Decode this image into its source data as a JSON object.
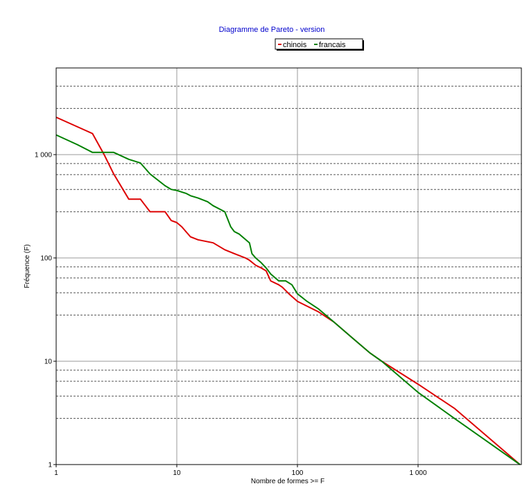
{
  "chart_data": {
    "type": "line",
    "title": "Diagramme de Pareto - version",
    "xlabel": "Nombre de formes >= F",
    "ylabel": "Fréquence (F)",
    "x_scale": "log",
    "y_scale": "log",
    "xlim": [
      1,
      7000
    ],
    "ylim": [
      1,
      5000
    ],
    "x_ticks": [
      {
        "value": 1,
        "label": "1"
      },
      {
        "value": 10,
        "label": "10"
      },
      {
        "value": 100,
        "label": "100"
      },
      {
        "value": 1000,
        "label": "1 000"
      }
    ],
    "y_ticks": [
      {
        "value": 1,
        "label": "1"
      },
      {
        "value": 10,
        "label": "10"
      },
      {
        "value": 100,
        "label": "100"
      },
      {
        "value": 1000,
        "label": "1 000"
      }
    ],
    "grid": "on",
    "legend_position": "top-center",
    "series": [
      {
        "name": "chinois",
        "color": "#dd0000",
        "points": [
          [
            1,
            2300
          ],
          [
            2,
            1600
          ],
          [
            2.5,
            1000
          ],
          [
            3,
            650
          ],
          [
            4,
            370
          ],
          [
            5,
            370
          ],
          [
            6,
            280
          ],
          [
            8,
            280
          ],
          [
            9,
            230
          ],
          [
            10,
            220
          ],
          [
            11,
            200
          ],
          [
            13,
            160
          ],
          [
            15,
            150
          ],
          [
            20,
            140
          ],
          [
            25,
            120
          ],
          [
            30,
            110
          ],
          [
            37,
            100
          ],
          [
            40,
            95
          ],
          [
            45,
            85
          ],
          [
            50,
            80
          ],
          [
            55,
            75
          ],
          [
            60,
            60
          ],
          [
            70,
            55
          ],
          [
            75,
            52
          ],
          [
            85,
            45
          ],
          [
            100,
            38
          ],
          [
            150,
            30
          ],
          [
            200,
            24
          ],
          [
            300,
            16
          ],
          [
            400,
            12
          ],
          [
            500,
            10
          ],
          [
            1000,
            6
          ],
          [
            2000,
            3.5
          ],
          [
            7000,
            1
          ]
        ]
      },
      {
        "name": "francais",
        "color": "#008000",
        "points": [
          [
            1,
            1550
          ],
          [
            1.5,
            1250
          ],
          [
            2,
            1050
          ],
          [
            3,
            1050
          ],
          [
            4,
            900
          ],
          [
            5,
            830
          ],
          [
            6,
            650
          ],
          [
            8,
            500
          ],
          [
            9,
            460
          ],
          [
            10,
            450
          ],
          [
            12,
            420
          ],
          [
            13,
            400
          ],
          [
            15,
            380
          ],
          [
            18,
            350
          ],
          [
            20,
            320
          ],
          [
            25,
            280
          ],
          [
            28,
            200
          ],
          [
            30,
            180
          ],
          [
            33,
            170
          ],
          [
            35,
            160
          ],
          [
            40,
            140
          ],
          [
            42,
            110
          ],
          [
            45,
            100
          ],
          [
            50,
            90
          ],
          [
            55,
            80
          ],
          [
            60,
            70
          ],
          [
            70,
            60
          ],
          [
            80,
            60
          ],
          [
            90,
            55
          ],
          [
            100,
            45
          ],
          [
            120,
            38
          ],
          [
            150,
            32
          ],
          [
            200,
            24
          ],
          [
            300,
            16
          ],
          [
            400,
            12
          ],
          [
            500,
            10
          ],
          [
            1000,
            5
          ],
          [
            2000,
            2.8
          ],
          [
            7000,
            1
          ]
        ]
      }
    ]
  }
}
